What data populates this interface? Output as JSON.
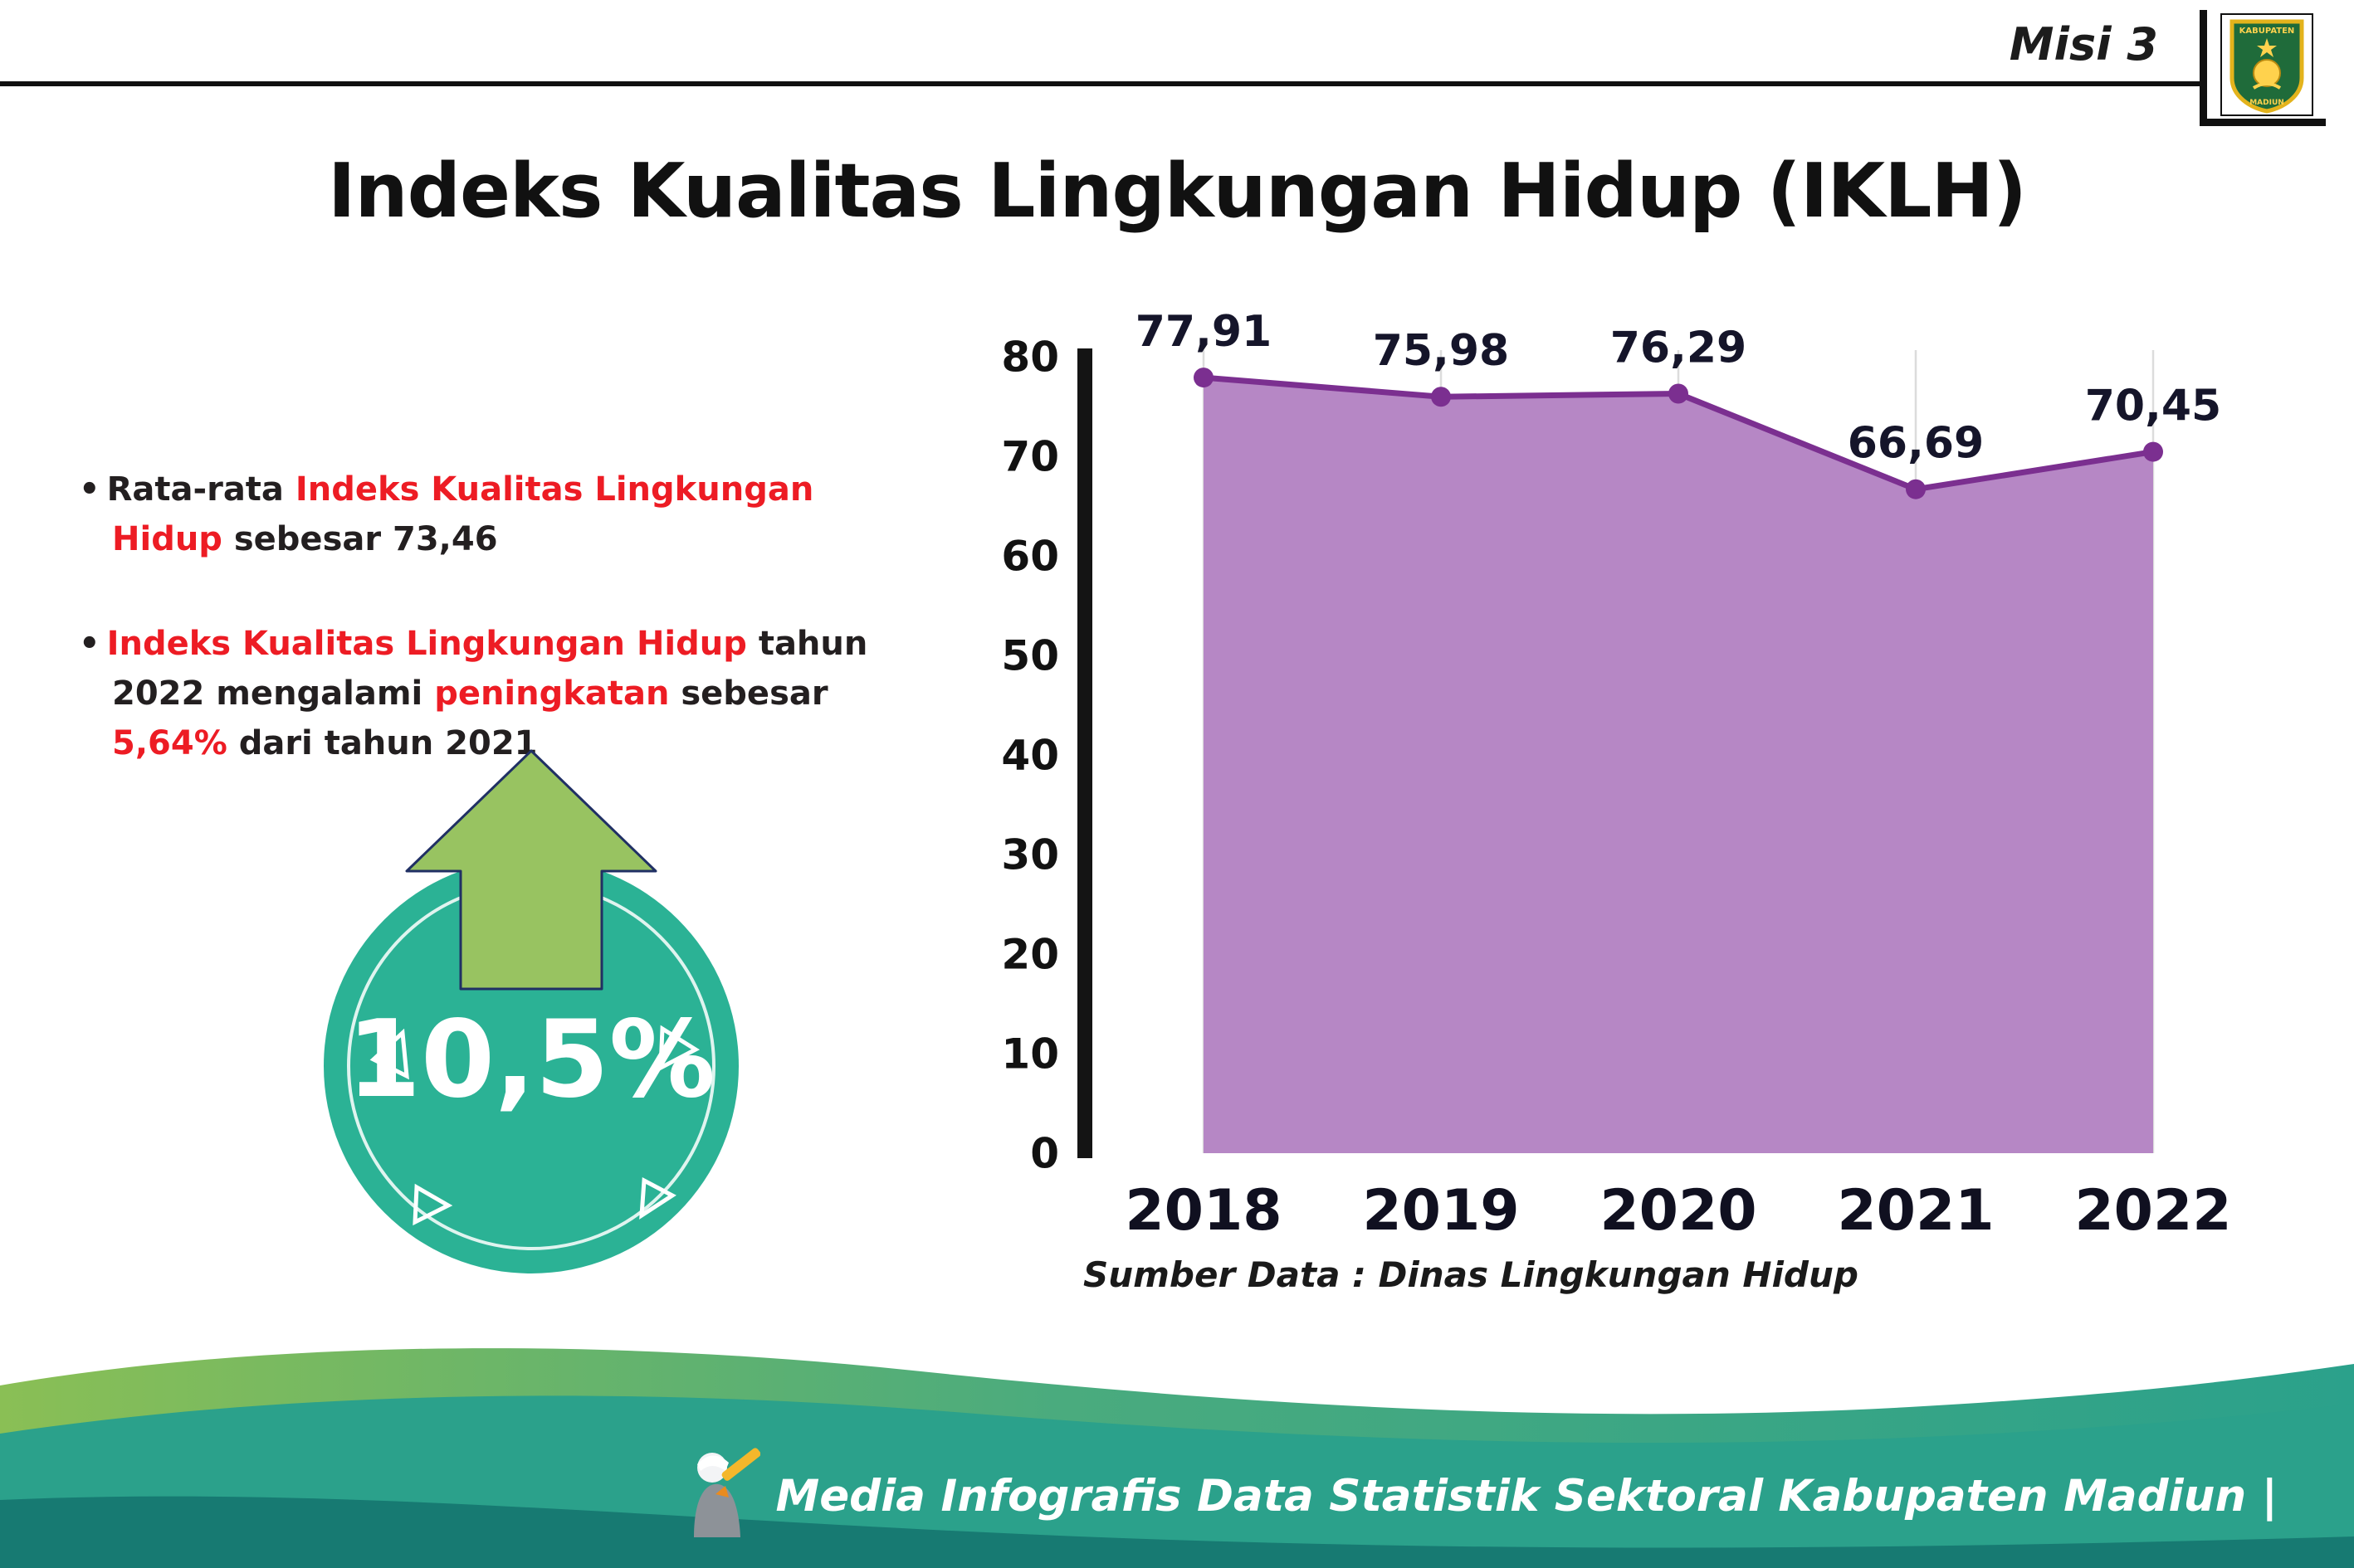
{
  "header": {
    "misi_label": "Misi 3",
    "title": "Indeks Kualitas Lingkungan Hidup (IKLH)"
  },
  "logo": {
    "line1": "KABUPATEN",
    "line2": "MADIUN"
  },
  "bullets": {
    "b1": {
      "p0": "Rata-rata ",
      "p1": "Indeks Kualitas Lingkungan Hidup",
      "p2": " sebesar 73,46"
    },
    "b2": {
      "p0": "Indeks Kualitas Lingkungan Hidup",
      "p1": " tahun 2022 mengalami ",
      "p2": "peningkatan",
      "p3": " sebesar ",
      "p4": "5,64%",
      "p5": " dari tahun 2021"
    }
  },
  "badge": {
    "value": "10,5%",
    "circle_color": "#2bb295",
    "arrow_color": "#98c361"
  },
  "chart_data": {
    "type": "area",
    "title": "Indeks Kualitas Lingkungan Hidup (IKLH)",
    "categories": [
      "2018",
      "2019",
      "2020",
      "2021",
      "2022"
    ],
    "values": [
      77.91,
      75.98,
      76.29,
      66.69,
      70.45
    ],
    "point_labels": [
      "77,91",
      "75,98",
      "76,29",
      "66,69",
      "70,45"
    ],
    "ylim": [
      0,
      80
    ],
    "yticks": [
      0,
      10,
      20,
      30,
      40,
      50,
      60,
      70,
      80
    ],
    "grid": "vertical-light",
    "legend": "none",
    "colors": {
      "line": "#7b2f90",
      "fill": "#b687c5",
      "axis": "#141414"
    },
    "source_note": "Sumber Data : Dinas Lingkungan Hidup"
  },
  "footer": {
    "credit": "Media Infografis Data Statistik Sektoral Kabupaten Madiun |"
  }
}
